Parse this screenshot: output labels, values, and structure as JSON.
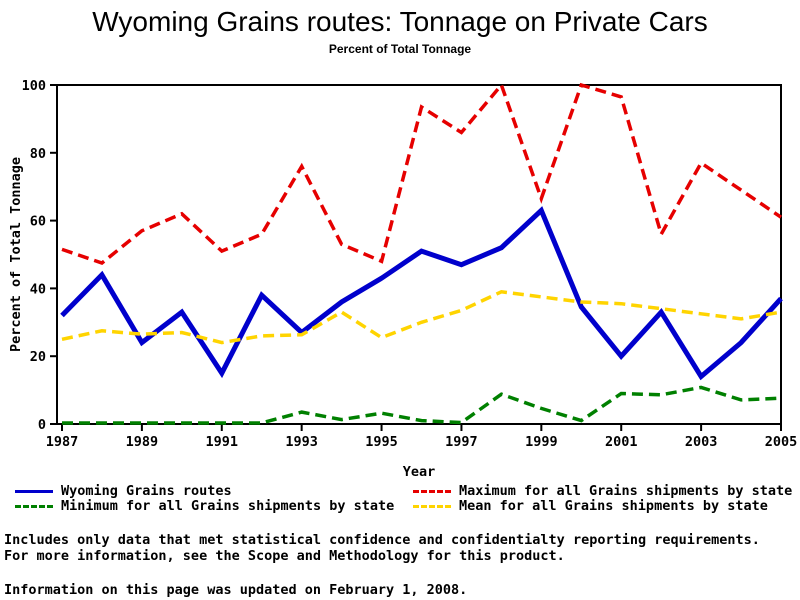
{
  "title": "Wyoming Grains routes: Tonnage on Private Cars",
  "subtitle": "Percent of Total Tonnage",
  "chart_data": {
    "type": "line",
    "x": [
      1987,
      1988,
      1989,
      1990,
      1991,
      1992,
      1993,
      1994,
      1995,
      1996,
      1997,
      1998,
      1999,
      2000,
      2001,
      2002,
      2003,
      2004,
      2005
    ],
    "xticks": [
      1987,
      1989,
      1991,
      1993,
      1995,
      1997,
      1999,
      2001,
      2003,
      2005
    ],
    "yticks": [
      0,
      20,
      40,
      60,
      80,
      100
    ],
    "ylim": [
      0,
      100
    ],
    "xlabel": "Year",
    "ylabel": "Percent of Total Tonnage",
    "grid": false,
    "legend_position": "bottom",
    "series": [
      {
        "name": "Wyoming Grains routes",
        "color": "#0000cc",
        "line_style": "solid",
        "values": [
          32,
          44,
          24,
          33,
          15,
          38,
          27,
          36,
          43,
          51,
          47,
          52,
          63,
          34.5,
          20,
          33,
          14,
          24,
          37
        ]
      },
      {
        "name": "Maximum for all Grains shipments by state",
        "color": "#e60000",
        "line_style": "dashed",
        "values": [
          51.5,
          47.5,
          57,
          62,
          51,
          56,
          76,
          53,
          48,
          93.5,
          86,
          100,
          66.5,
          100,
          96.5,
          56,
          77,
          69,
          61
        ]
      },
      {
        "name": "Minimum for all Grains shipments by state",
        "color": "#008000",
        "line_style": "dashed",
        "values": [
          0.3,
          0.3,
          0.3,
          0.3,
          0.3,
          0.3,
          3.5,
          1.3,
          3.2,
          1,
          0.4,
          8.8,
          4.6,
          1,
          9,
          8.6,
          10.8,
          7.1,
          7.6
        ]
      },
      {
        "name": "Mean for all Grains shipments by state",
        "color": "#ffd400",
        "line_style": "dashed",
        "values": [
          25,
          27.5,
          26.5,
          27,
          24,
          26,
          26.3,
          33,
          25.5,
          30,
          33.5,
          39,
          37.5,
          36,
          35.5,
          34,
          32.5,
          31,
          33
        ]
      }
    ]
  },
  "legend": {
    "items": [
      {
        "label": "Wyoming Grains routes",
        "color": "#0000cc",
        "line_style": "solid"
      },
      {
        "label": "Maximum for all Grains shipments by state",
        "color": "#e60000",
        "line_style": "dashed"
      },
      {
        "label": "Minimum for all Grains shipments by state",
        "color": "#008000",
        "line_style": "dashed"
      },
      {
        "label": "Mean for all Grains shipments by state",
        "color": "#ffd400",
        "line_style": "dashed"
      }
    ]
  },
  "footnotes": {
    "line1": "Includes only data that met statistical confidence and confidentialty reporting requirements.",
    "line2": "For more information, see the Scope and Methodology for this product.",
    "updated": "Information on this page was updated on February 1, 2008."
  }
}
